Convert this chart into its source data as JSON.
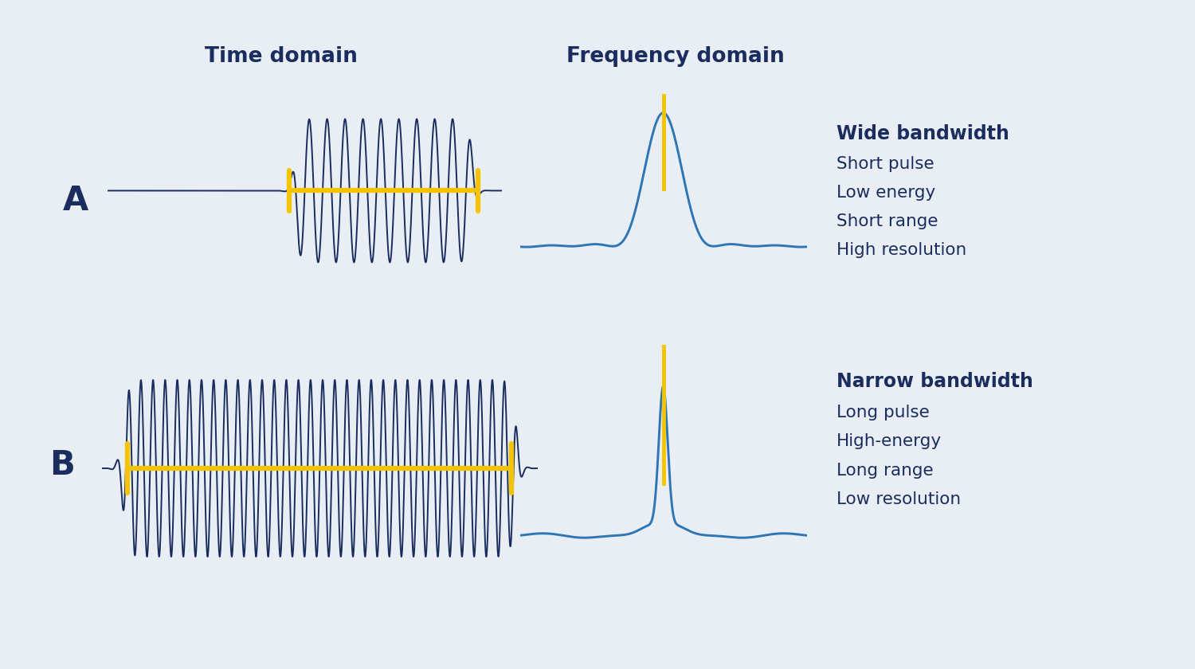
{
  "background_color": "#e8eef4",
  "navy_color": "#1b2d5e",
  "yellow_color": "#f5c400",
  "blue_signal_color": "#2e75b6",
  "title_time": "Time domain",
  "title_freq": "Frequency domain",
  "label_A": "A",
  "label_B": "B",
  "text_A_bold": "Wide bandwidth",
  "text_A_lines": [
    "Short pulse",
    "Low energy",
    "Short range",
    "High resolution"
  ],
  "text_B_bold": "Narrow bandwidth",
  "text_B_lines": [
    "Long pulse",
    "High-energy",
    "Long range",
    "Low resolution"
  ],
  "title_fontsize": 19,
  "label_fontsize": 30,
  "text_bold_fontsize": 17,
  "text_line_fontsize": 15.5
}
